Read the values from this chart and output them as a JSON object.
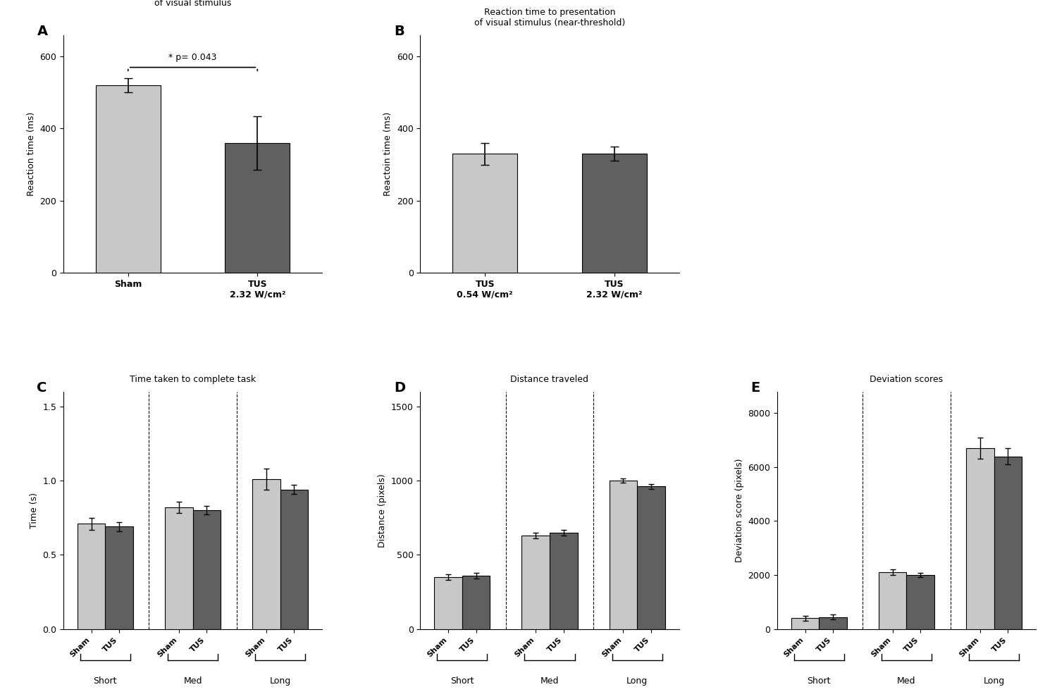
{
  "background_color": "#ffffff",
  "panel_A": {
    "title": "Reaction time to presentation\nof visual stimulus",
    "ylabel": "Reaction time (ms)",
    "categories": [
      "Sham",
      "TUS\n2.32 W/cm²"
    ],
    "values": [
      520,
      360
    ],
    "errors": [
      20,
      75
    ],
    "colors": [
      "#c8c8c8",
      "#606060"
    ],
    "ylim": [
      0,
      660
    ],
    "yticks": [
      0,
      200,
      400,
      600
    ],
    "sig_text": "* p= 0.043"
  },
  "panel_B": {
    "title": "Reaction time to presentation\nof visual stimulus (near-threshold)",
    "ylabel": "Reactoin time (ms)",
    "categories": [
      "TUS\n0.54 W/cm²",
      "TUS\n2.32 W/cm²"
    ],
    "values": [
      330,
      330
    ],
    "errors": [
      30,
      20
    ],
    "colors": [
      "#c8c8c8",
      "#606060"
    ],
    "ylim": [
      0,
      660
    ],
    "yticks": [
      0,
      200,
      400,
      600
    ]
  },
  "panel_C": {
    "title": "Time taken to complete task",
    "ylabel": "Time (s)",
    "groups": [
      "Short",
      "Med",
      "Long"
    ],
    "sham_values": [
      0.71,
      0.82,
      1.01
    ],
    "tus_values": [
      0.69,
      0.8,
      0.94
    ],
    "sham_errors": [
      0.04,
      0.04,
      0.07
    ],
    "tus_errors": [
      0.03,
      0.03,
      0.03
    ],
    "sham_color": "#c8c8c8",
    "tus_color": "#606060",
    "ylim": [
      0,
      1.6
    ],
    "yticks": [
      0.0,
      0.5,
      1.0,
      1.5
    ]
  },
  "panel_D": {
    "title": "Distance traveled",
    "ylabel": "Distance (pixels)",
    "groups": [
      "Short",
      "Med",
      "Long"
    ],
    "sham_values": [
      350,
      630,
      1000
    ],
    "tus_values": [
      360,
      650,
      960
    ],
    "sham_errors": [
      20,
      20,
      15
    ],
    "tus_errors": [
      20,
      20,
      15
    ],
    "sham_color": "#c8c8c8",
    "tus_color": "#606060",
    "ylim": [
      0,
      1600
    ],
    "yticks": [
      0,
      500,
      1000,
      1500
    ]
  },
  "panel_E": {
    "title": "Deviation scores",
    "ylabel": "Deviation score (pixels)",
    "groups": [
      "Short",
      "Med",
      "Long"
    ],
    "sham_values": [
      400,
      2100,
      6700
    ],
    "tus_values": [
      450,
      2000,
      6400
    ],
    "sham_errors": [
      80,
      100,
      400
    ],
    "tus_errors": [
      80,
      80,
      300
    ],
    "sham_color": "#c8c8c8",
    "tus_color": "#606060",
    "ylim": [
      0,
      8800
    ],
    "yticks": [
      0,
      2000,
      4000,
      6000,
      8000
    ]
  }
}
